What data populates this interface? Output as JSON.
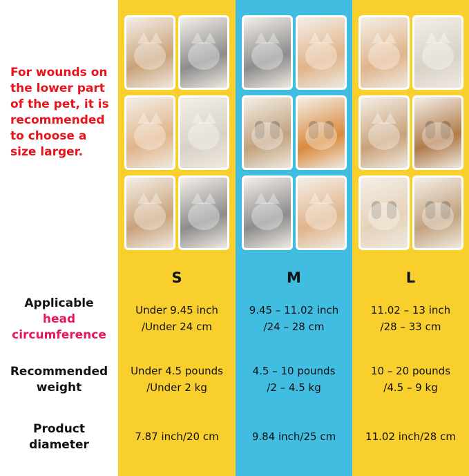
{
  "colors": {
    "yellow": "#f9cf2e",
    "blue": "#41bde2",
    "note_red": "#e8141b",
    "highlight_pink": "#e8195a"
  },
  "note": "For wounds on the lower part of the pet, it is recommended to choose a size larger.",
  "row_labels": [
    {
      "line1": "Applicable",
      "line2": "head",
      "line3": "circumference"
    },
    {
      "line1": "Recommended",
      "line2": "weight"
    },
    {
      "line1": "Product",
      "line2": "diameter"
    }
  ],
  "sizes": [
    {
      "name": "S",
      "head": [
        "Under 9.45 inch",
        "/Under 24 cm"
      ],
      "weight": [
        "Under 4.5 pounds",
        "/Under 2 kg"
      ],
      "diameter": "7.87 inch/20 cm",
      "photos": [
        "cat",
        "cat",
        "cat",
        "cat",
        "cat",
        "cat"
      ]
    },
    {
      "name": "M",
      "head": [
        "9.45 – 11.02 inch",
        "/24 – 28 cm"
      ],
      "weight": [
        "4.5 – 10 pounds",
        "/2 – 4.5 kg"
      ],
      "diameter": "9.84 inch/25 cm",
      "photos": [
        "cat",
        "cat",
        "dog",
        "dog",
        "cat",
        "cat"
      ]
    },
    {
      "name": "L",
      "head": [
        "11.02 – 13 inch",
        "/28 – 33 cm"
      ],
      "weight": [
        "10 – 20 pounds",
        "/4.5 – 9 kg"
      ],
      "diameter": "11.02 inch/28 cm",
      "photos": [
        "cat",
        "cat",
        "cat",
        "dog",
        "dog",
        "dog"
      ]
    }
  ]
}
